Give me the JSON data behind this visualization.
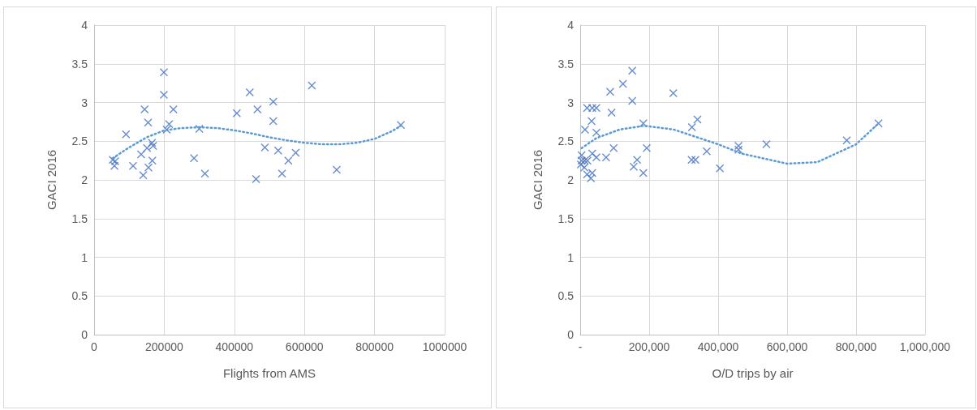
{
  "chart_data": [
    {
      "type": "scatter",
      "xlabel": "Flights from AMS",
      "ylabel": "GACI 2016",
      "xlim": [
        0,
        1000000
      ],
      "xticks": [
        0,
        200000,
        400000,
        600000,
        800000,
        1000000
      ],
      "ylim": [
        0,
        4
      ],
      "yticks": [
        0,
        0.5,
        1,
        1.5,
        2,
        2.5,
        3,
        3.5,
        4
      ],
      "grid": true,
      "marker": "cross",
      "series": [
        {
          "color": "#4472c4",
          "x": [
            53000,
            58000,
            60000,
            91000,
            111000,
            140000,
            134000,
            144000,
            154000,
            151000,
            155000,
            165000,
            168000,
            166000,
            199000,
            199000,
            207000,
            214000,
            226000,
            285000,
            300000,
            316000,
            407000,
            444000,
            466000,
            462000,
            487000,
            511000,
            511000,
            525000,
            536000,
            554000,
            575000,
            621000,
            692000,
            875000
          ],
          "values": [
            2.26,
            2.18,
            2.24,
            2.59,
            2.18,
            2.06,
            2.33,
            2.91,
            2.74,
            2.41,
            2.16,
            2.48,
            2.44,
            2.25,
            3.39,
            3.1,
            2.65,
            2.72,
            2.91,
            2.28,
            2.66,
            2.08,
            2.86,
            3.13,
            2.91,
            2.01,
            2.42,
            3.01,
            2.76,
            2.38,
            2.08,
            2.25,
            2.35,
            3.22,
            2.13,
            2.71
          ]
        },
        {
          "type": "line",
          "line_style": "dotted",
          "marker": "none",
          "color": "#5b9bd5",
          "x": [
            53000,
            100000,
            150000,
            200000,
            250000,
            300000,
            350000,
            400000,
            450000,
            500000,
            550000,
            600000,
            650000,
            700000,
            750000,
            800000,
            850000,
            875000
          ],
          "values": [
            2.28,
            2.42,
            2.55,
            2.64,
            2.67,
            2.68,
            2.67,
            2.64,
            2.6,
            2.55,
            2.51,
            2.48,
            2.46,
            2.46,
            2.48,
            2.53,
            2.63,
            2.7
          ]
        }
      ]
    },
    {
      "type": "scatter",
      "xlabel": "O/D trips by air",
      "ylabel": "GACI 2016",
      "xlim": [
        0,
        1000000
      ],
      "xticks": [
        {
          "value": 0,
          "label": "-"
        },
        {
          "value": 200000,
          "label": "200,000"
        },
        {
          "value": 400000,
          "label": "400,000"
        },
        {
          "value": 600000,
          "label": "600,000"
        },
        {
          "value": 800000,
          "label": "800,000"
        },
        {
          "value": 1000000,
          "label": "1,000,000"
        }
      ],
      "ylim": [
        0,
        4
      ],
      "yticks": [
        0,
        0.5,
        1,
        1.5,
        2,
        2.5,
        3,
        3.5,
        4
      ],
      "grid": true,
      "marker": "cross",
      "series": [
        {
          "color": "#4472c4",
          "x": [
            151000,
            124000,
            87000,
            151000,
            270000,
            20000,
            35000,
            47000,
            91000,
            33000,
            14000,
            47000,
            183000,
            340000,
            324000,
            97000,
            193000,
            4000,
            35000,
            47000,
            75000,
            4000,
            13000,
            21000,
            2000,
            12000,
            20000,
            35000,
            31000,
            165000,
            155000,
            183000,
            323000,
            334000,
            367000,
            405000,
            459000,
            459000,
            540000,
            773000,
            865000
          ],
          "values": [
            3.41,
            3.24,
            3.14,
            3.02,
            3.12,
            2.93,
            2.93,
            2.93,
            2.87,
            2.76,
            2.65,
            2.61,
            2.73,
            2.78,
            2.68,
            2.41,
            2.41,
            2.32,
            2.34,
            2.29,
            2.29,
            2.25,
            2.25,
            2.25,
            2.2,
            2.16,
            2.07,
            2.09,
            2.02,
            2.26,
            2.17,
            2.09,
            2.26,
            2.26,
            2.37,
            2.15,
            2.44,
            2.39,
            2.46,
            2.51,
            2.73
          ]
        },
        {
          "type": "line",
          "line_style": "dotted",
          "marker": "none",
          "color": "#5b9bd5",
          "x": [
            4000,
            47000,
            114000,
            185000,
            272000,
            400000,
            468000,
            600000,
            688000,
            800000,
            865000
          ],
          "values": [
            2.41,
            2.54,
            2.65,
            2.7,
            2.65,
            2.46,
            2.34,
            2.21,
            2.23,
            2.46,
            2.73
          ]
        }
      ]
    }
  ]
}
